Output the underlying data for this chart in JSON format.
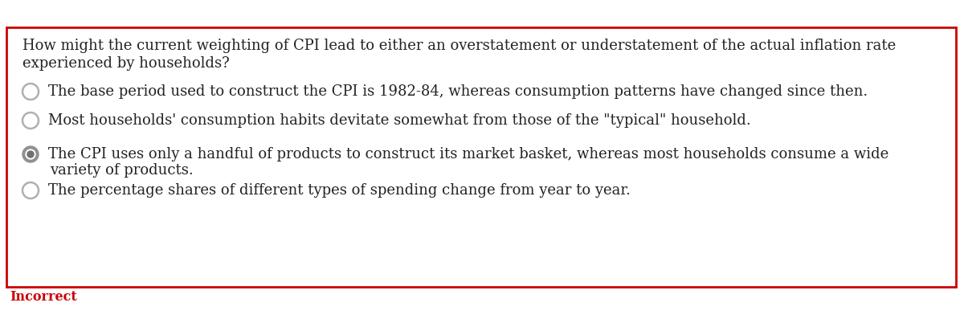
{
  "question_line1": "How might the current weighting of CPI lead to either an overstatement or understatement of the actual inflation rate",
  "question_line2": "experienced by households?",
  "options": [
    {
      "lines": [
        "The base period used to construct the CPI is 1982-84, whereas consumption patterns have changed since then."
      ],
      "selected": false
    },
    {
      "lines": [
        "Most households' consumption habits devitate somewhat from those of the \"typical\" household."
      ],
      "selected": false
    },
    {
      "lines": [
        "The CPI uses only a handful of products to construct its market basket, whereas most households consume a wide",
        "variety of products."
      ],
      "selected": true
    },
    {
      "lines": [
        "The percentage shares of different types of spending change from year to year."
      ],
      "selected": false
    }
  ],
  "incorrect_label": "Incorrect",
  "bg_color": "#ffffff",
  "border_color": "#cc0000",
  "text_color": "#222222",
  "question_color": "#222222",
  "incorrect_color": "#cc0000",
  "radio_empty_edge": "#b0b0b0",
  "radio_empty_fill": "#ffffff",
  "radio_selected_outer": "#909090",
  "radio_selected_inner_fill": "#ffffff",
  "radio_selected_dot": "#707070",
  "font_size_question": 13.0,
  "font_size_options": 13.0,
  "font_size_incorrect": 11.5
}
